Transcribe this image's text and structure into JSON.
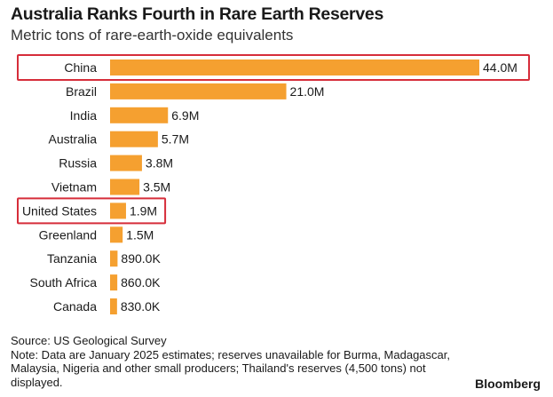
{
  "chart_data": {
    "type": "bar",
    "orientation": "horizontal",
    "title": "Australia Ranks Fourth in Rare Earth Reserves",
    "subtitle": "Metric tons of rare-earth-oxide equivalents",
    "categories": [
      "China",
      "Brazil",
      "India",
      "Australia",
      "Russia",
      "Vietnam",
      "United States",
      "Greenland",
      "Tanzania",
      "South Africa",
      "Canada"
    ],
    "values": [
      44000000,
      21000000,
      6900000,
      5700000,
      3800000,
      3500000,
      1900000,
      1500000,
      890000,
      860000,
      830000
    ],
    "value_labels": [
      "44.0M",
      "21.0M",
      "6.9M",
      "5.7M",
      "3.8M",
      "3.5M",
      "1.9M",
      "1.5M",
      "890.0K",
      "860.0K",
      "830.0K"
    ],
    "highlighted": [
      "China",
      "United States"
    ],
    "xlim": [
      0,
      44000000
    ],
    "grid": false,
    "bar_color": "#f5a030",
    "highlight_color": "#d62d3a"
  },
  "source": "Source: US Geological Survey",
  "note": "Note: Data are January 2025 estimates; reserves unavailable for Burma, Madagascar, Malaysia, Nigeria and other small producers; Thailand's reserves (4,500 tons) not displayed.",
  "brand": "Bloomberg"
}
